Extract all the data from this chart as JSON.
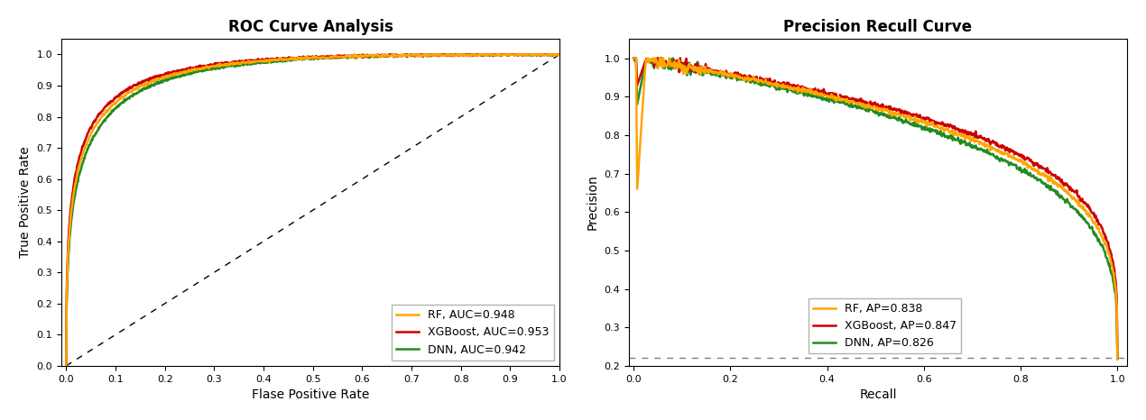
{
  "roc_title": "ROC Curve Analysis",
  "roc_xlabel": "Flase Positive Rate",
  "roc_ylabel": "True Positive Rate",
  "roc_models": [
    {
      "label": "RF, AUC=0.948",
      "color": "#FFA500",
      "auc": 0.948,
      "alpha": 0.054
    },
    {
      "label": "XGBoost, AUC=0.953",
      "color": "#CC0000",
      "auc": 0.953,
      "alpha": 0.049
    },
    {
      "label": "DNN, AUC=0.942",
      "color": "#228B22",
      "auc": 0.942,
      "alpha": 0.06
    }
  ],
  "pr_title": "Precision Recull Curve",
  "pr_xlabel": "Recall",
  "pr_ylabel": "Precision",
  "pr_baseline": 0.222,
  "pr_models": [
    {
      "label": "RF, AP=0.838",
      "color": "#FFA500",
      "ap": 0.838,
      "c": 0.38
    },
    {
      "label": "XGBoost, AP=0.847",
      "color": "#CC0000",
      "ap": 0.847,
      "c": 0.35
    },
    {
      "label": "DNN, AP=0.826",
      "color": "#228B22",
      "ap": 0.826,
      "c": 0.42
    }
  ],
  "roc_xlim": [
    -0.01,
    1.0
  ],
  "roc_ylim": [
    0.0,
    1.05
  ],
  "pr_xlim": [
    -0.01,
    1.02
  ],
  "pr_ylim": [
    0.2,
    1.05
  ],
  "linewidth": 1.8,
  "legend_fontsize": 9,
  "title_fontsize": 12,
  "axis_label_fontsize": 10,
  "roc_xticks": [
    0.0,
    0.1,
    0.2,
    0.3,
    0.4,
    0.5,
    0.6,
    0.7,
    0.8,
    0.9,
    1.0
  ],
  "roc_yticks": [
    0.0,
    0.1,
    0.2,
    0.3,
    0.4,
    0.5,
    0.6,
    0.7,
    0.8,
    0.9,
    1.0
  ],
  "pr_xticks": [
    0.0,
    0.2,
    0.4,
    0.6,
    0.8,
    1.0
  ],
  "pr_yticks": [
    0.2,
    0.3,
    0.4,
    0.5,
    0.6,
    0.7,
    0.8,
    0.9,
    1.0
  ]
}
